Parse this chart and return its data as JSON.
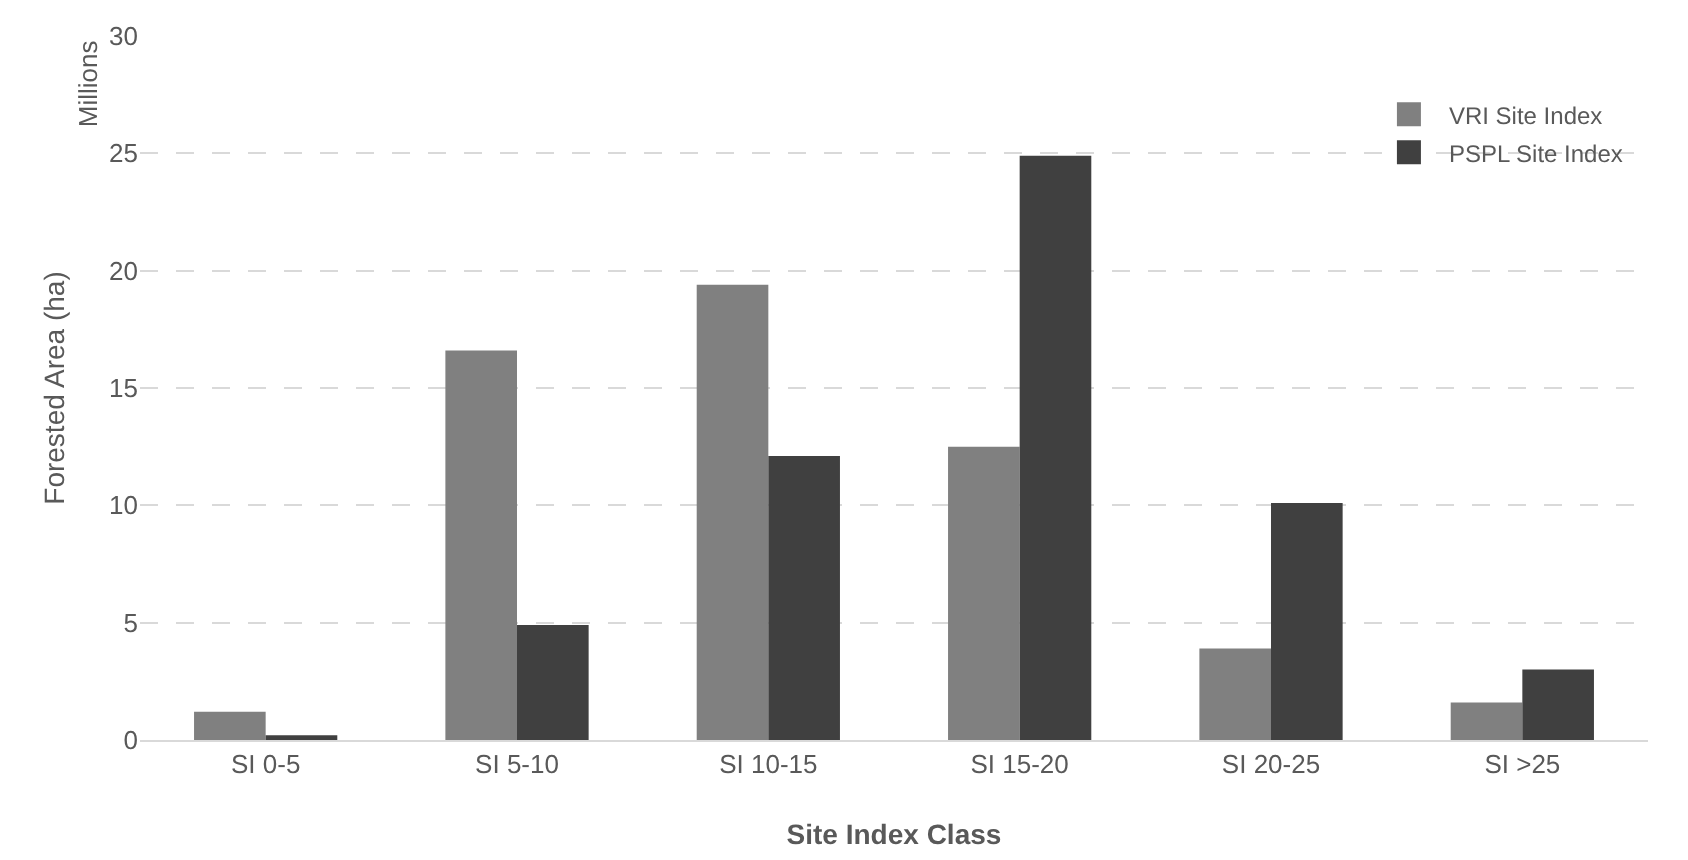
{
  "chart_data": {
    "type": "bar",
    "xlabel": "Site Index Class",
    "ylabel": "Forested Area (ha)",
    "annotations": [
      "Millions"
    ],
    "categories": [
      "SI 0-5",
      "SI 5-10",
      "SI 10-15",
      "SI 15-20",
      "SI 20-25",
      "SI >25"
    ],
    "series": [
      {
        "name": "VRI Site Index",
        "color": "#808080",
        "values": [
          1.2,
          16.6,
          19.4,
          12.5,
          3.9,
          1.6
        ]
      },
      {
        "name": "PSPL Site Index",
        "color": "#404040",
        "values": [
          0.2,
          4.9,
          12.1,
          24.9,
          10.1,
          3.0
        ]
      }
    ],
    "ylim": [
      0,
      30
    ],
    "yticks": [
      0,
      5,
      10,
      15,
      20,
      25,
      30
    ],
    "grid": "y",
    "legend": "top right"
  }
}
